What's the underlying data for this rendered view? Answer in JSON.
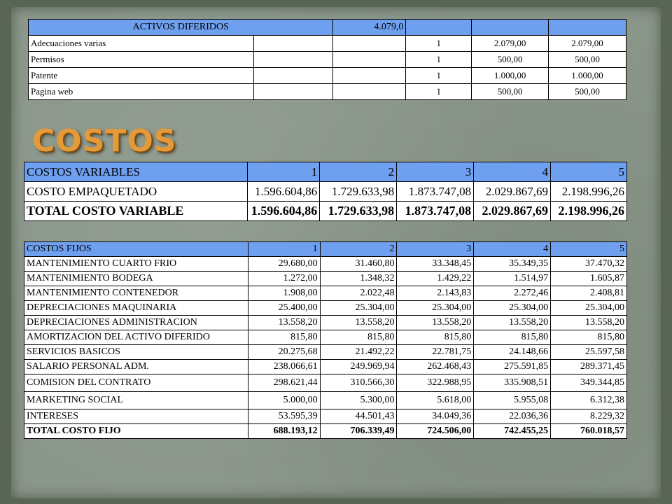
{
  "activos_diferidos": {
    "header": [
      "ACTIVOS DIFERIDOS",
      "4.079,0"
    ],
    "rows": [
      {
        "label": "Adecuaciones varias",
        "qty": "1",
        "v1": "2.079,00",
        "v2": "2.079,00"
      },
      {
        "label": "Permisos",
        "qty": "1",
        "v1": "500,00",
        "v2": "500,00"
      },
      {
        "label": "Patente",
        "qty": "1",
        "v1": "1.000,00",
        "v2": "1.000,00"
      },
      {
        "label": "Pagina web",
        "qty": "1",
        "v1": "500,00",
        "v2": "500,00"
      }
    ]
  },
  "section_title": "COSTOS",
  "costos_variables": {
    "header": [
      "COSTOS VARIABLES",
      "1",
      "2",
      "3",
      "4",
      "5"
    ],
    "rows": [
      [
        "COSTO EMPAQUETADO",
        "1.596.604,86",
        "1.729.633,98",
        "1.873.747,08",
        "2.029.867,69",
        "2.198.996,26"
      ],
      [
        "TOTAL COSTO VARIABLE",
        "1.596.604,86",
        "1.729.633,98",
        "1.873.747,08",
        "2.029.867,69",
        "2.198.996,26"
      ]
    ]
  },
  "costos_fijos": {
    "header": [
      "COSTOS FIJOS",
      "1",
      "2",
      "3",
      "4",
      "5"
    ],
    "rows": [
      [
        "MANTENIMIENTO CUARTO FRIO",
        "29.680,00",
        "31.460,80",
        "33.348,45",
        "35.349,35",
        "37.470,32"
      ],
      [
        "MANTENIMIENTO BODEGA",
        "1.272,00",
        "1.348,32",
        "1.429,22",
        "1.514,97",
        "1.605,87"
      ],
      [
        "MANTENIMIENTO CONTENEDOR",
        "1.908,00",
        "2.022,48",
        "2.143,83",
        "2.272,46",
        "2.408,81"
      ],
      [
        "DEPRECIACIONES MAQUINARIA",
        "25.400,00",
        "25.304,00",
        "25.304,00",
        "25.304,00",
        "25.304,00"
      ],
      [
        "DEPRECIACIONES ADMINISTRACION",
        "13.558,20",
        "13.558,20",
        "13.558,20",
        "13.558,20",
        "13.558,20"
      ],
      [
        "AMORTIZACION DEL ACTIVO DIFERIDO",
        "815,80",
        "815,80",
        "815,80",
        "815,80",
        "815,80"
      ],
      [
        "SERVICIOS BASICOS",
        "20.275,68",
        "21.492,22",
        "22.781,75",
        "24.148,66",
        "25.597,58"
      ],
      [
        "SALARIO PERSONAL ADM.",
        "238.066,61",
        "249.969,94",
        "262.468,43",
        "275.591,85",
        "289.371,45"
      ],
      [
        "COMISION DEL CONTRATO",
        "298.621,44",
        "310.566,30",
        "322.988,95",
        "335.908,51",
        "349.344,85"
      ],
      [
        "MARKETING SOCIAL",
        "5.000,00",
        "5.300,00",
        "5.618,00",
        "5.955,08",
        "6.312,38"
      ],
      [
        "INTERESES",
        "53.595,39",
        "44.501,43",
        "34.049,36",
        "22.036,36",
        "8.229,32"
      ],
      [
        "TOTAL COSTO FIJO",
        "688.193,12",
        "706.339,49",
        "724.506,00",
        "742.455,25",
        "760.018,57"
      ]
    ]
  }
}
